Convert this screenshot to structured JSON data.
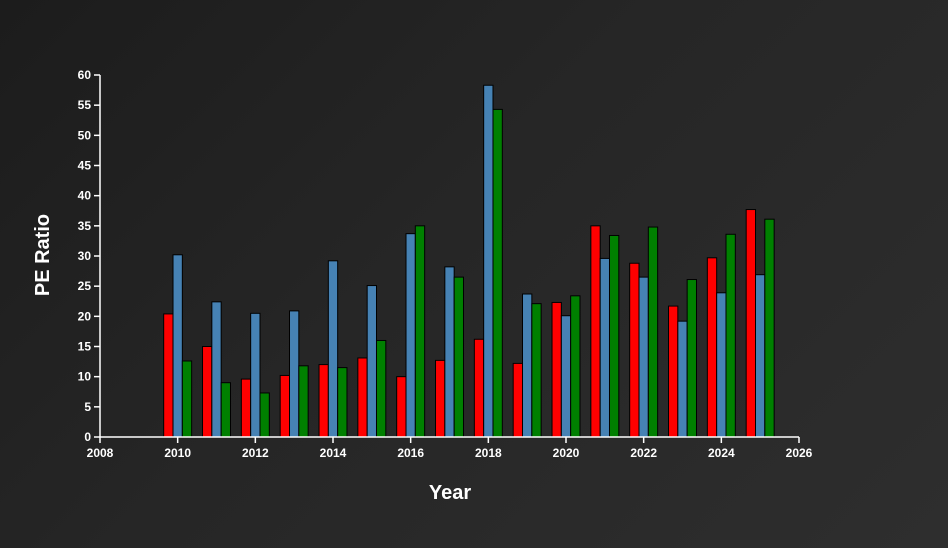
{
  "chart_data": {
    "type": "bar",
    "xlabel": "Year",
    "ylabel": "PE Ratio",
    "xlim": [
      2008,
      2026
    ],
    "ylim": [
      0,
      60
    ],
    "x_ticks": [
      "2008",
      "2010",
      "2012",
      "2014",
      "2016",
      "2018",
      "2020",
      "2022",
      "2024",
      "2026"
    ],
    "y_ticks": [
      "0",
      "5",
      "10",
      "15",
      "20",
      "25",
      "30",
      "35",
      "40",
      "45",
      "50",
      "55",
      "60"
    ],
    "grid": false,
    "legend": "none",
    "x": [
      2010,
      2011,
      2012,
      2013,
      2014,
      2015,
      2016,
      2017,
      2018,
      2019,
      2020,
      2021,
      2022,
      2023,
      2024,
      2025
    ],
    "series": [
      {
        "color": "#ff0000",
        "values": [
          20.4,
          15.0,
          9.6,
          10.2,
          12.0,
          13.1,
          10.0,
          12.7,
          16.2,
          12.2,
          22.3,
          35.0,
          28.8,
          21.7,
          29.7,
          37.7
        ]
      },
      {
        "color": "#4682b4",
        "values": [
          30.2,
          22.4,
          20.5,
          20.9,
          29.2,
          25.1,
          33.7,
          28.2,
          58.3,
          23.7,
          20.1,
          29.6,
          26.5,
          19.2,
          23.9,
          26.9
        ]
      },
      {
        "color": "#008000",
        "values": [
          12.6,
          9.0,
          7.3,
          11.8,
          11.5,
          16.0,
          35.0,
          26.5,
          54.3,
          22.1,
          23.4,
          33.4,
          34.8,
          26.1,
          33.6,
          36.1
        ]
      }
    ]
  }
}
